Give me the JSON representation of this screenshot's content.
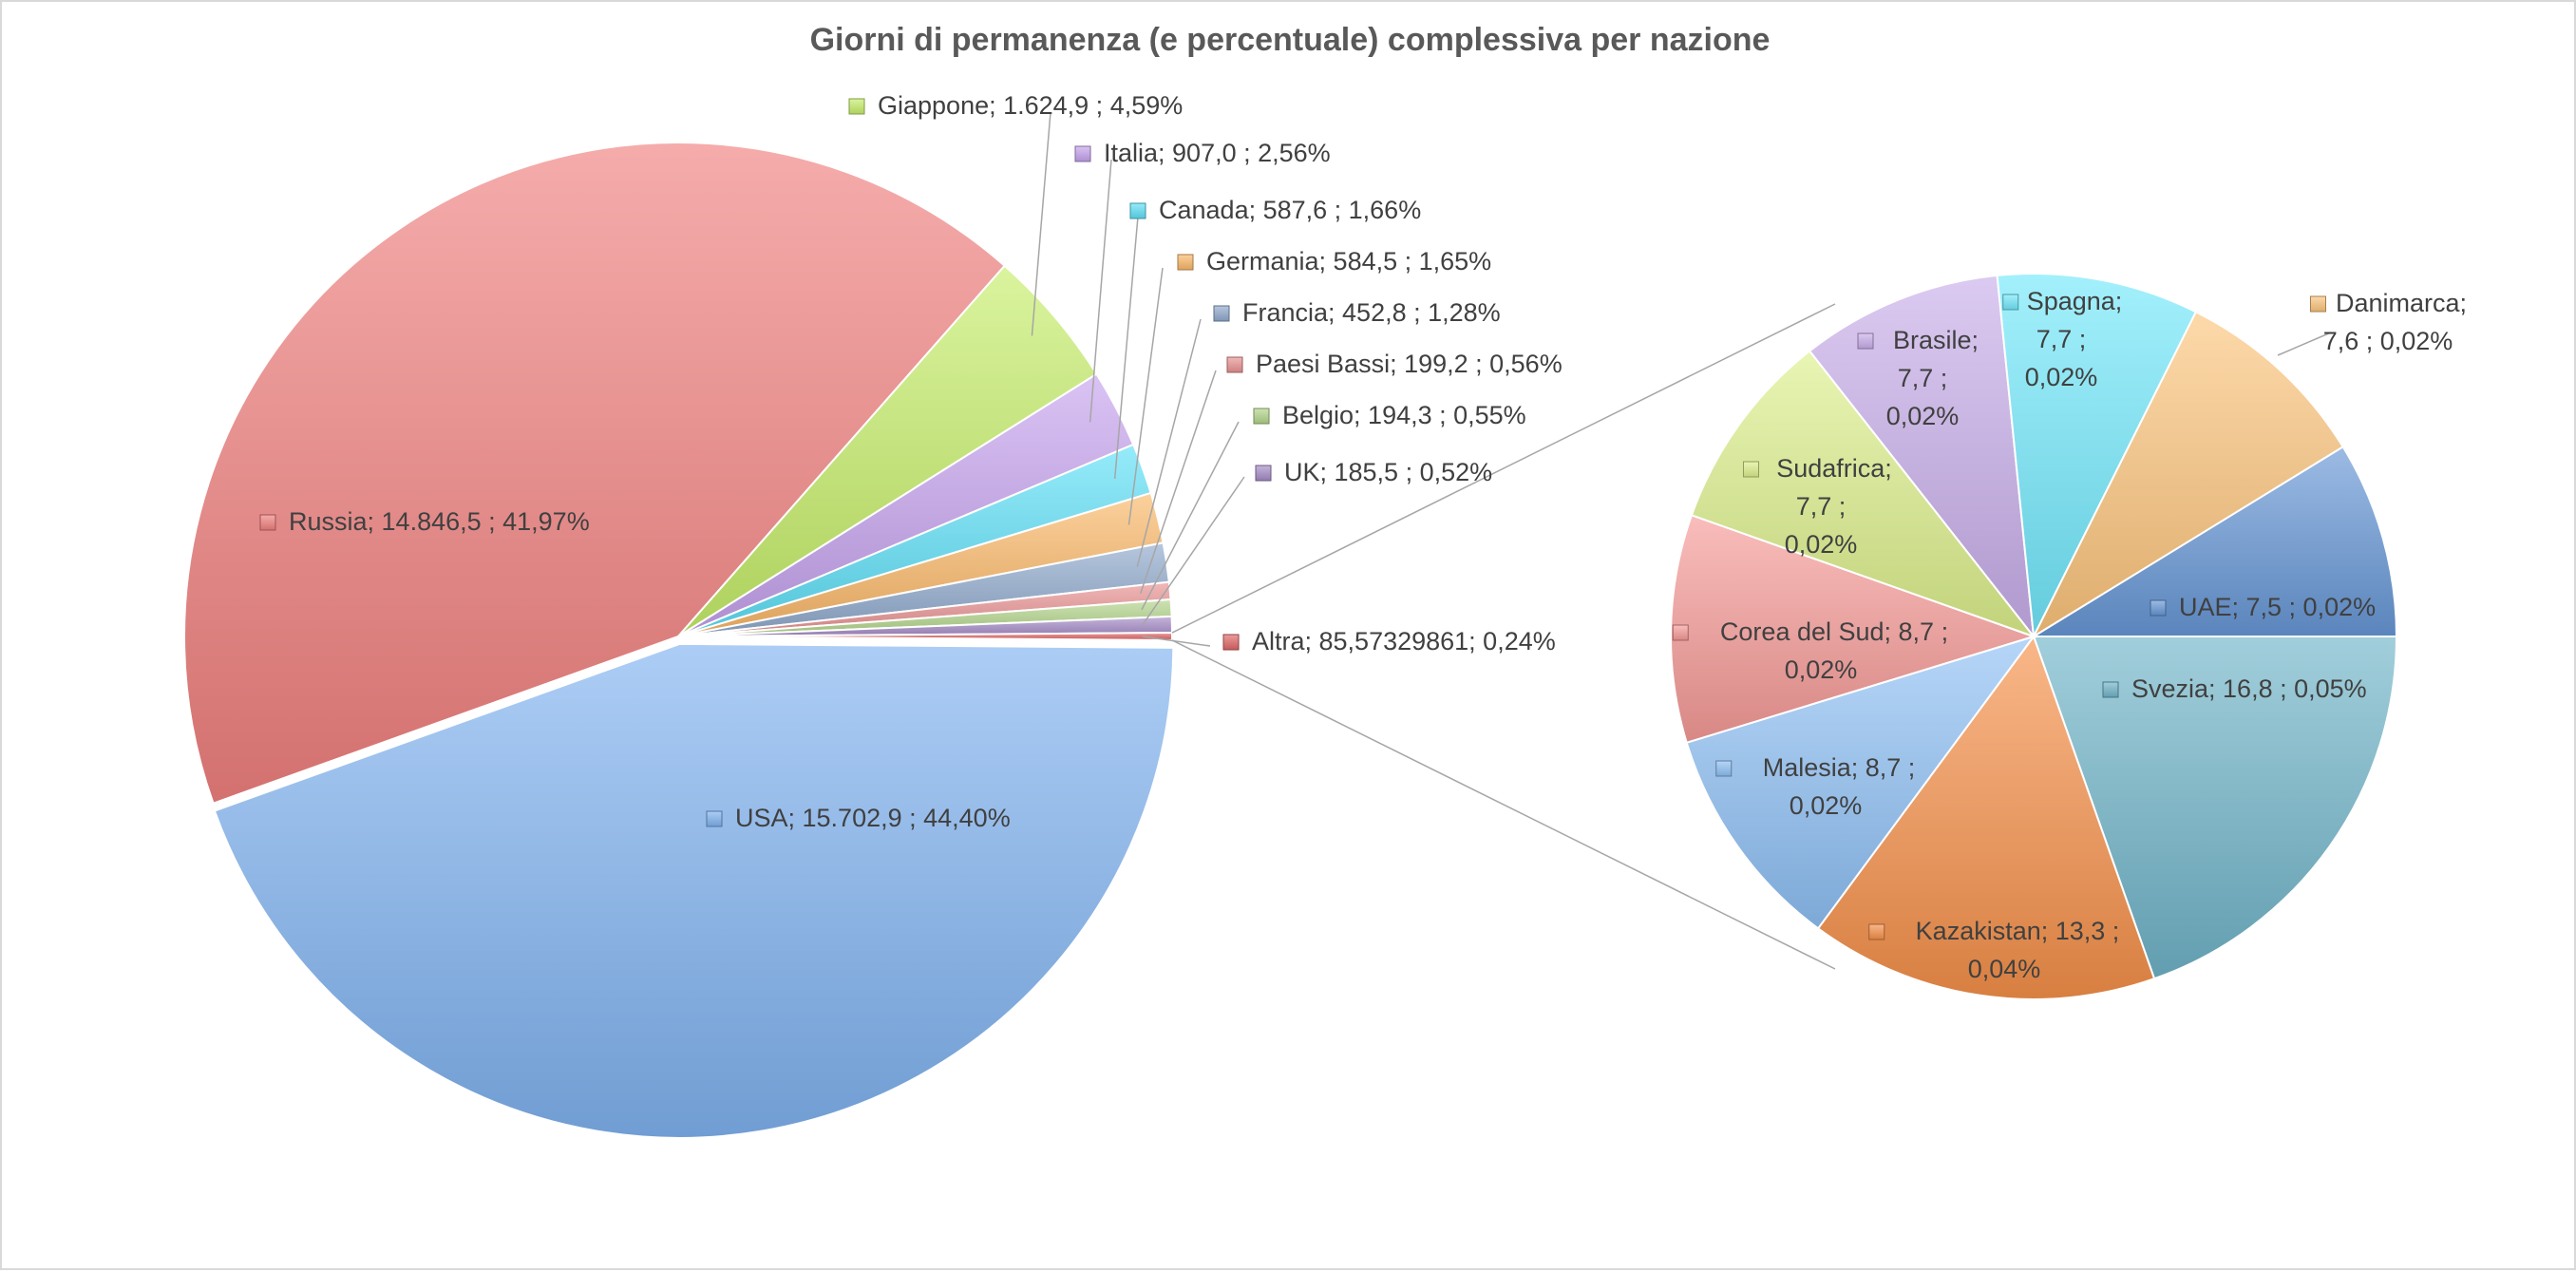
{
  "chart_data": {
    "type": "pie",
    "subtype": "pie-of-pie",
    "title": "Giorni di permanenza (e percentuale) complessiva per nazione",
    "main_pie": [
      {
        "name": "USA",
        "value": 15702.9,
        "percent": 44.4,
        "label": "USA;  15.702,9 ; 44,40%",
        "color": "#7fb2f0"
      },
      {
        "name": "Russia",
        "value": 14846.5,
        "percent": 41.97,
        "label": "Russia;  14.846,5 ; 41,97%",
        "color": "#f0807e"
      },
      {
        "name": "Giappone",
        "value": 1624.9,
        "percent": 4.59,
        "label": "Giappone;  1.624,9 ; 4,59%",
        "color": "#c6ee6a"
      },
      {
        "name": "Italia",
        "value": 907.0,
        "percent": 2.56,
        "label": "Italia;  907,0 ; 2,56%",
        "color": "#c6a2ee"
      },
      {
        "name": "Canada",
        "value": 587.6,
        "percent": 1.66,
        "label": "Canada;  587,6 ; 1,66%",
        "color": "#5ee0f7"
      },
      {
        "name": "Germania",
        "value": 584.5,
        "percent": 1.65,
        "label": "Germania;  584,5 ; 1,65%",
        "color": "#fbb868"
      },
      {
        "name": "Francia",
        "value": 452.8,
        "percent": 1.28,
        "label": "Francia;  452,8 ; 1,28%",
        "color": "#8fa9cc"
      },
      {
        "name": "Paesi Bassi",
        "value": 199.2,
        "percent": 0.56,
        "label": "Paesi Bassi;  199,2 ; 0,56%",
        "color": "#e99292"
      },
      {
        "name": "Belgio",
        "value": 194.3,
        "percent": 0.55,
        "label": "Belgio;  194,3 ; 0,55%",
        "color": "#b2d48a"
      },
      {
        "name": "UK",
        "value": 185.5,
        "percent": 0.52,
        "label": "UK;  185,5 ; 0,52%",
        "color": "#a58cc7"
      },
      {
        "name": "Altra",
        "value": 85.57329861,
        "percent": 0.24,
        "label": "Altra; 85,57329861; 0,24%",
        "color": "#e06666"
      }
    ],
    "secondary_pie": [
      {
        "name": "Svezia",
        "value": 16.8,
        "percent": 0.05,
        "label": [
          "Svezia;  16,8 ; 0,05%"
        ],
        "color": "#6fb3c8"
      },
      {
        "name": "Kazakistan",
        "value": 13.3,
        "percent": 0.04,
        "label": [
          "Kazakistan;  13,3 ;",
          "0,04%"
        ],
        "color": "#f5904a"
      },
      {
        "name": "Malesia",
        "value": 8.7,
        "percent": 0.02,
        "label": [
          "Malesia;  8,7 ;",
          "0,02%"
        ],
        "color": "#8ec0f4"
      },
      {
        "name": "Corea del Sud",
        "value": 8.7,
        "percent": 0.02,
        "label": [
          "Corea del Sud;  8,7 ;",
          "0,02%"
        ],
        "color": "#f59a97"
      },
      {
        "name": "Sudafrica",
        "value": 7.7,
        "percent": 0.02,
        "label": [
          "Sudafrica;",
          "7,7 ;",
          "0,02%"
        ],
        "color": "#dcf08c"
      },
      {
        "name": "Brasile",
        "value": 7.7,
        "percent": 0.02,
        "label": [
          "Brasile;",
          "7,7 ;",
          "0,02%"
        ],
        "color": "#c8aeea"
      },
      {
        "name": "Spagna",
        "value": 7.7,
        "percent": 0.02,
        "label": [
          "Spagna;",
          "7,7 ;",
          "0,02%"
        ],
        "color": "#72e8fb"
      },
      {
        "name": "Danimarca",
        "value": 7.6,
        "percent": 0.02,
        "label": [
          "Danimarca;",
          "7,6 ; 0,02%"
        ],
        "color": "#fcc57c"
      },
      {
        "name": "UAE",
        "value": 7.5,
        "percent": 0.02,
        "label": [
          "UAE;  7,5 ; 0,02%"
        ],
        "color": "#6697d6"
      }
    ]
  }
}
